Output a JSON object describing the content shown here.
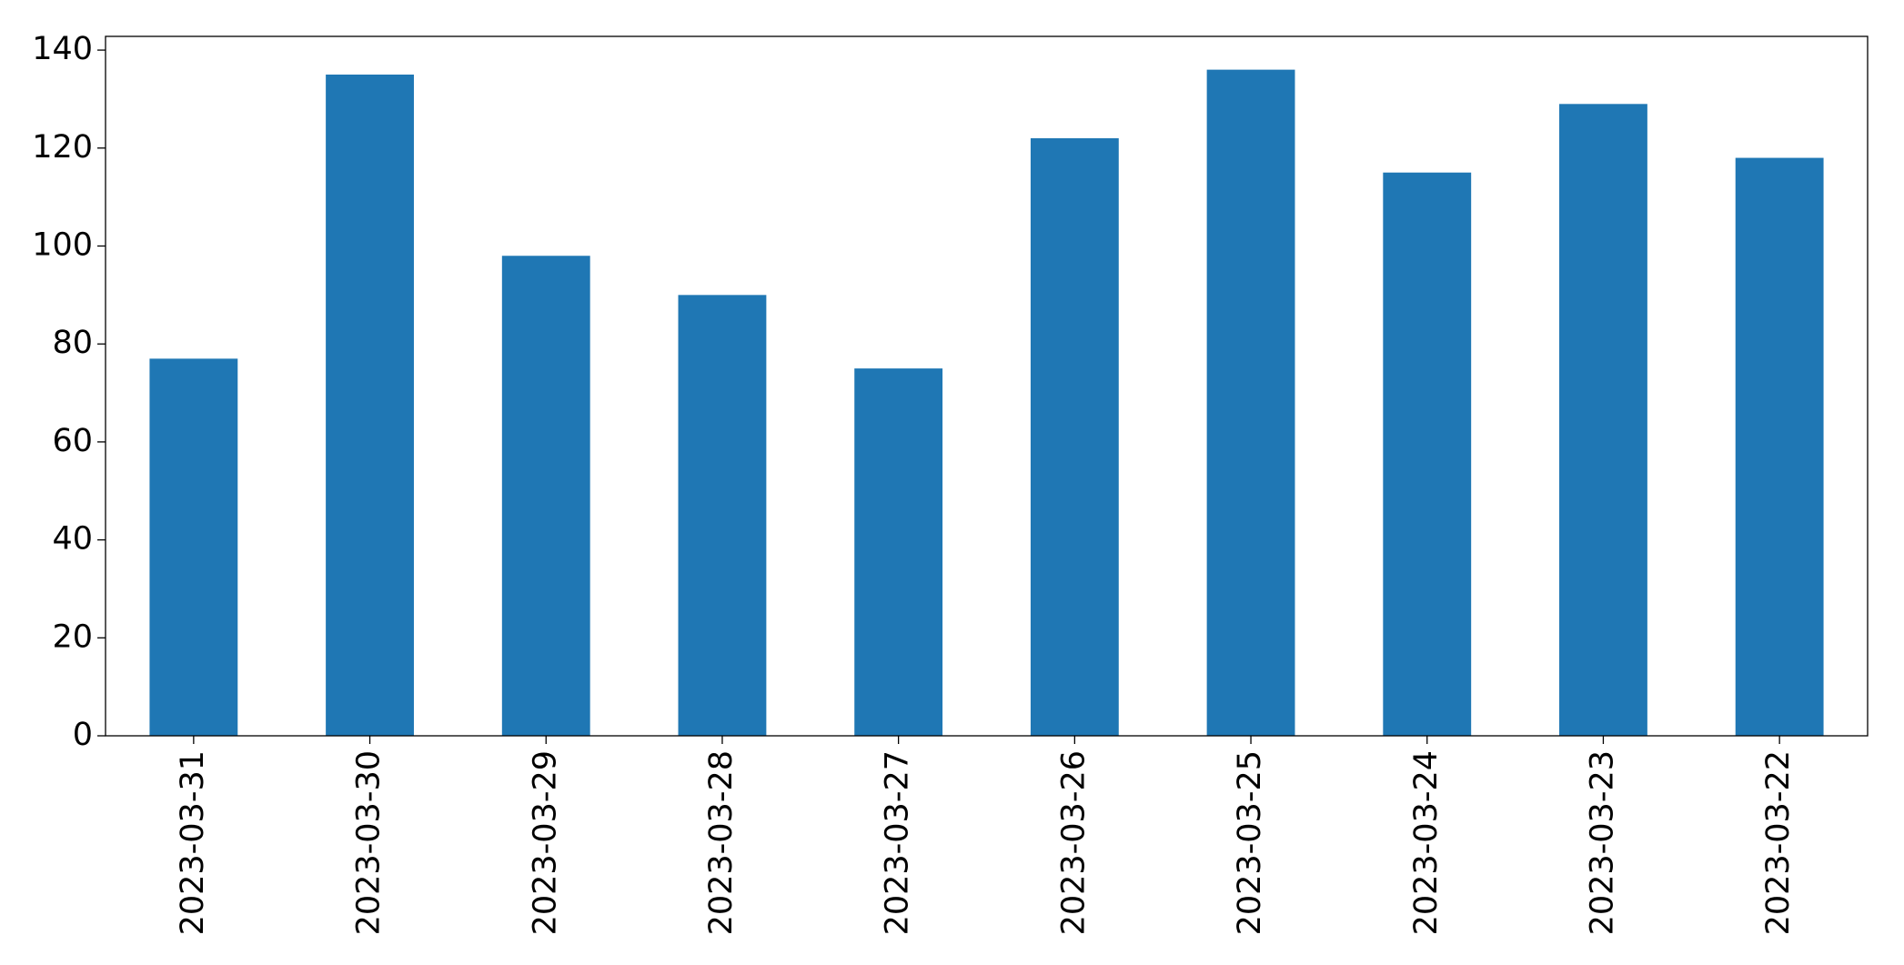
{
  "chart_data": {
    "type": "bar",
    "categories": [
      "2023-03-31",
      "2023-03-30",
      "2023-03-29",
      "2023-03-28",
      "2023-03-27",
      "2023-03-26",
      "2023-03-25",
      "2023-03-24",
      "2023-03-23",
      "2023-03-22"
    ],
    "values": [
      77,
      135,
      98,
      90,
      75,
      122,
      136,
      115,
      129,
      118
    ],
    "color": "#1f77b4",
    "ylim": [
      0,
      142.8
    ],
    "yticks": [
      0,
      20,
      40,
      60,
      80,
      100,
      120,
      140
    ],
    "grid": false
  }
}
